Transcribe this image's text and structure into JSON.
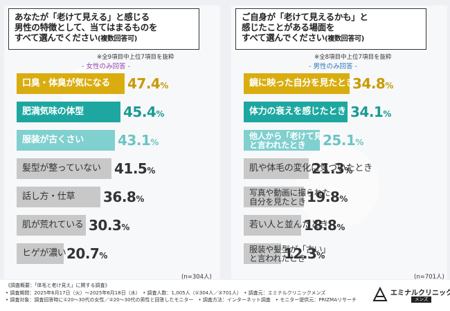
{
  "chart_data": [
    {
      "type": "bar",
      "title": "あなたが「老けて見える」と感じる\n男性の特徴として、当てはまるものを\nすべて選んでください",
      "title_suffix": "(複数回答可)",
      "note": "※全9項目中上位7項目を抜粋",
      "subtitle": "- 女性のみ回答 -",
      "sample": "(n=304人)",
      "unit": "%",
      "xlim": [
        0,
        60
      ],
      "categories": [
        "口臭・体臭が気になる",
        "肥満気味の体型",
        "服装が古くさい",
        "髪型が整っていない",
        "話し方・仕草",
        "肌が荒れている",
        "ヒゲが濃い"
      ],
      "values": [
        47.4,
        45.4,
        43.1,
        41.5,
        36.8,
        30.3,
        20.7
      ],
      "colors": [
        "#d9ad10",
        "#1ea7a0",
        "#7fd0cf",
        "#c8c8c8",
        "#c8c8c8",
        "#c8c8c8",
        "#c8c8c8"
      ],
      "pct_colors": [
        "#c99a00",
        "#1a9a93",
        "#6cc4c3",
        "#333333",
        "#333333",
        "#333333",
        "#333333"
      ]
    },
    {
      "type": "bar",
      "title": "ご自身が「老けて見えるかも」と\n感じたことがある場面を\nすべて選んでください",
      "title_suffix": "(複数回答可)",
      "note": "※全8項目中上位7項目を抜粋",
      "subtitle": "- 男性のみ回答 -",
      "sample": "(n=701人)",
      "unit": "%",
      "xlim": [
        0,
        45
      ],
      "categories": [
        "鏡に映った自分を見たとき",
        "体力の衰えを感じたとき",
        "他人から「老けて見える」\nと言われたとき",
        "肌や体毛の変化に気づいたとき",
        "写真や動画に撮られた\n自分を見たとき",
        "若い人と並んだとき",
        "服装や髪型が「古い」\nと言われたとき"
      ],
      "values": [
        34.8,
        34.1,
        25.1,
        21.3,
        19.8,
        18.8,
        12.3
      ],
      "colors": [
        "#d9ad10",
        "#1ea7a0",
        "#7fd0cf",
        "#c8c8c8",
        "#c8c8c8",
        "#c8c8c8",
        "#c8c8c8"
      ],
      "pct_colors": [
        "#c99a00",
        "#1a9a93",
        "#6cc4c3",
        "#333333",
        "#333333",
        "#333333",
        "#333333"
      ]
    }
  ],
  "footer": {
    "lines": [
      "《調査概要：「体毛と老け見え」に関する調査》",
      "• 調査期間：2025年6月17日（火）〜2025年6月18日（水）　• 調査人数：1,005人（①304人／②701人）　• 調査元：エミナルクリニックメンズ",
      "• 調査対象：調査回答時に①20〜30代の女性／②20〜30代の男性と回答したモニター　• 調査方法：インターネット調査　• モニター提供元：PRIZMAリサーチ"
    ],
    "logo_name": "エミナルクリニック",
    "logo_sub": "メンズ"
  }
}
